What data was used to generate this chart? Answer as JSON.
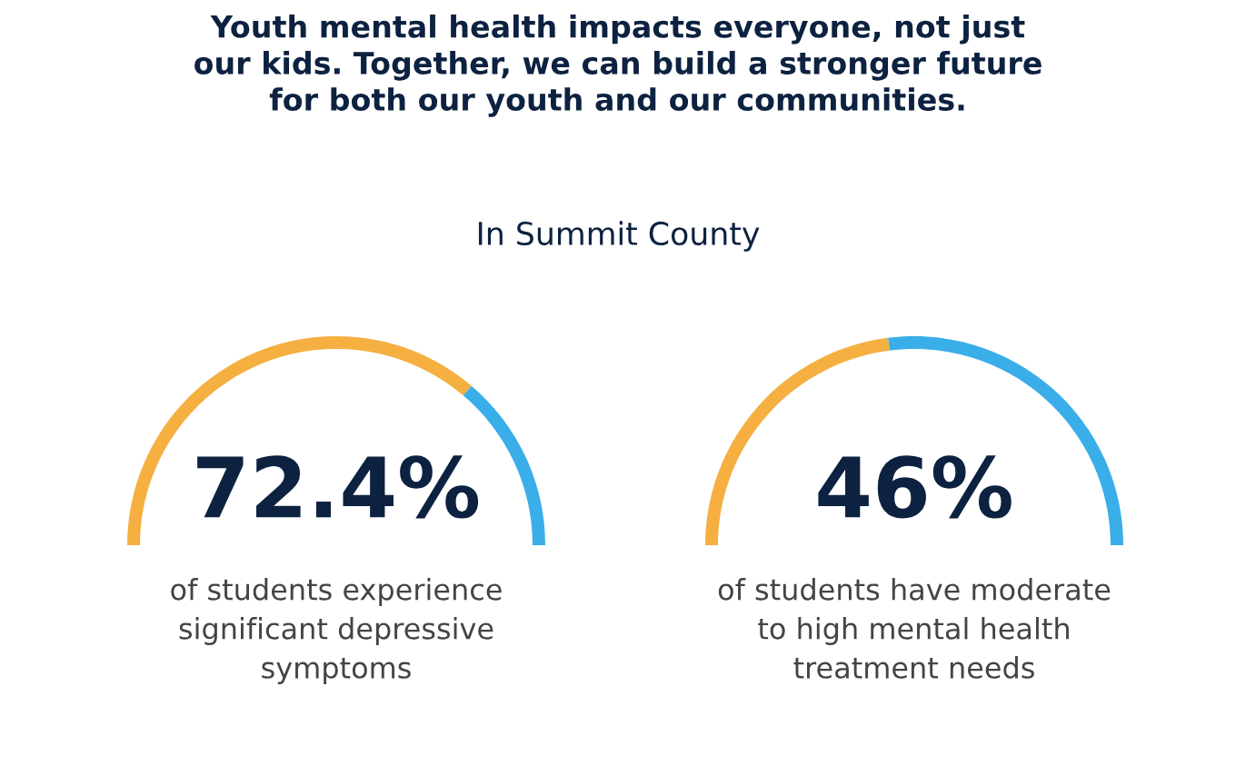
{
  "chart_data": [
    {
      "type": "donut",
      "title": "Youth mental health impacts everyone, not just\nour kids. Together, we can build a stronger future\nfor both our youth and our communities.",
      "subtitle": "In Summit County",
      "categories": [
        null,
        null
      ],
      "values": [
        72.4,
        27.6
      ],
      "colors": [
        "#f5b041",
        "#3aaee8"
      ],
      "value_labels": [
        "72.4%",
        null
      ],
      "annotations": [
        "of students experience\nsignificant depressive\nsymptoms"
      ]
    },
    {
      "type": "donut",
      "categories": [
        null,
        null
      ],
      "values": [
        46,
        54
      ],
      "colors": [
        "#f5b041",
        "#3aaee8"
      ],
      "value_labels": [
        "46%",
        null
      ],
      "annotations": [
        "of students have moderate\nto high mental health\ntreatment needs"
      ]
    }
  ]
}
